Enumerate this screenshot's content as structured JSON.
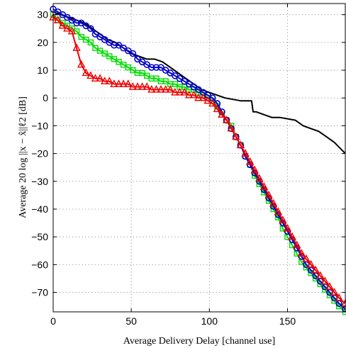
{
  "chart_data": {
    "type": "line",
    "title": "",
    "xlabel": "Average Delivery Delay [channel use]",
    "ylabel": "Average 20 log ||x − x̂||ℓ2 [dB]",
    "xlim": [
      0,
      187
    ],
    "ylim": [
      -77,
      34
    ],
    "xticks": [
      0,
      50,
      100,
      150
    ],
    "xtick_labels": [
      "0",
      "50",
      "100",
      "150"
    ],
    "yticks": [
      30,
      20,
      10,
      0,
      -10,
      -20,
      -30,
      -40,
      -50,
      -60,
      -70
    ],
    "ytick_labels": [
      "30",
      "20",
      "10",
      "0",
      "−10",
      "−20",
      "−30",
      "−40",
      "−50",
      "−60",
      "−70"
    ],
    "grid": true,
    "legend": null,
    "series": [
      {
        "color": "#000000",
        "marker": "none",
        "x": [
          0,
          5,
          10,
          15,
          20,
          25,
          30,
          35,
          40,
          45,
          50,
          55,
          60,
          65,
          70,
          75,
          80,
          85,
          90,
          95,
          100,
          105,
          110,
          115,
          120,
          122,
          125,
          127,
          128,
          130,
          135,
          140,
          145,
          150,
          155,
          160,
          165,
          170,
          175,
          180,
          187
        ],
        "y": [
          31,
          30,
          29,
          28,
          27,
          25,
          23,
          21,
          20,
          18,
          16,
          15,
          14,
          14,
          13,
          11,
          9,
          7,
          5,
          3,
          2,
          1,
          0,
          -0.5,
          -1,
          -1,
          -1,
          -1,
          -5,
          -5,
          -6,
          -7,
          -7,
          -7.5,
          -8,
          -10,
          -11,
          -12,
          -14,
          -16,
          -20
        ]
      },
      {
        "color": "#00dd00",
        "marker": "square",
        "x": [
          0,
          3,
          6,
          9,
          12,
          15,
          18,
          21,
          24,
          27,
          30,
          33,
          36,
          39,
          42,
          45,
          48,
          51,
          54,
          57,
          60,
          63,
          66,
          69,
          72,
          75,
          78,
          81,
          84,
          87,
          90,
          93,
          96,
          99,
          102,
          105,
          108,
          111,
          114,
          117,
          120,
          123,
          126,
          129,
          132,
          135,
          138,
          141,
          144,
          147,
          150,
          153,
          156,
          159,
          162,
          165,
          168,
          171,
          174,
          177,
          180,
          183,
          187
        ],
        "y": [
          30,
          28,
          27,
          26,
          25,
          24,
          22,
          21,
          20,
          18,
          17,
          16,
          15,
          14,
          13,
          12,
          11,
          10,
          9,
          9,
          8,
          7,
          7,
          6,
          6,
          5,
          5,
          4,
          4,
          3,
          3,
          2,
          1,
          0,
          -1,
          -3,
          -6,
          -8,
          -10,
          -14,
          -17,
          -21,
          -24,
          -28,
          -31,
          -34,
          -37,
          -40,
          -43,
          -47,
          -50,
          -53,
          -56,
          -59,
          -61,
          -63,
          -65,
          -67,
          -69,
          -71,
          -73,
          -75,
          -77
        ]
      },
      {
        "color": "#0000cc",
        "marker": "circle",
        "x": [
          0,
          3,
          6,
          9,
          12,
          15,
          18,
          21,
          24,
          27,
          30,
          33,
          36,
          39,
          42,
          45,
          48,
          51,
          54,
          57,
          60,
          63,
          66,
          69,
          72,
          75,
          78,
          81,
          84,
          87,
          90,
          93,
          96,
          99,
          102,
          105,
          108,
          111,
          114,
          117,
          120,
          123,
          126,
          129,
          132,
          135,
          138,
          141,
          144,
          147,
          150,
          153,
          156,
          159,
          162,
          165,
          168,
          171,
          174,
          177,
          180,
          183,
          187
        ],
        "y": [
          32,
          31,
          30,
          29,
          28,
          27,
          27,
          26,
          25,
          23,
          22,
          21,
          20,
          19,
          19,
          18,
          17,
          16,
          14,
          13,
          12,
          11,
          11,
          11,
          10,
          9,
          8,
          7,
          6,
          5,
          4,
          3,
          2,
          1,
          0,
          -2,
          -5,
          -8,
          -11,
          -14,
          -17,
          -21,
          -24,
          -27,
          -30,
          -33,
          -36,
          -39,
          -42,
          -45,
          -48,
          -51,
          -54,
          -57,
          -60,
          -62,
          -64,
          -66,
          -68,
          -70,
          -72,
          -74,
          -76
        ]
      },
      {
        "color": "#ee0000",
        "marker": "triangle",
        "x": [
          0,
          3,
          6,
          9,
          12,
          15,
          18,
          21,
          24,
          27,
          30,
          33,
          36,
          39,
          42,
          45,
          48,
          51,
          54,
          57,
          60,
          63,
          66,
          69,
          72,
          75,
          78,
          81,
          84,
          87,
          90,
          93,
          96,
          99,
          102,
          105,
          108,
          111,
          114,
          117,
          120,
          123,
          126,
          129,
          132,
          135,
          138,
          141,
          144,
          147,
          150,
          153,
          156,
          159,
          162,
          165,
          168,
          171,
          174,
          177,
          180,
          183,
          187
        ],
        "y": [
          29,
          28,
          26,
          25,
          24,
          18,
          12,
          9,
          8,
          7,
          7,
          6,
          6,
          5,
          5,
          5,
          5,
          4,
          4,
          4,
          4,
          3,
          3,
          3,
          3,
          3,
          2,
          2,
          2,
          1,
          1,
          0,
          0,
          -1,
          -2,
          -4,
          -6,
          -8,
          -11,
          -14,
          -17,
          -20,
          -23,
          -26,
          -29,
          -32,
          -35,
          -38,
          -41,
          -44,
          -47,
          -50,
          -53,
          -56,
          -58,
          -60,
          -62,
          -64,
          -66,
          -68,
          -70,
          -72,
          -74
        ]
      }
    ]
  }
}
